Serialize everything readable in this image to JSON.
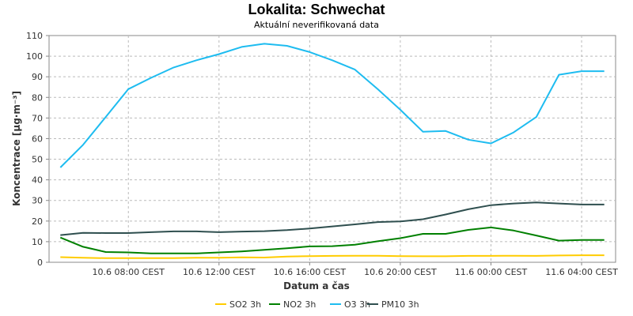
{
  "chart_data": {
    "type": "line",
    "title": "Lokalita: Schwechat",
    "subtitle": "Aktuální neverifikovaná data",
    "xlabel": "Datum a čas",
    "ylabel": "Koncentrace [µg·m⁻³]",
    "ylim": [
      0,
      110
    ],
    "yticks": [
      0,
      10,
      20,
      30,
      40,
      50,
      60,
      70,
      80,
      90,
      100,
      110
    ],
    "x_hours_range": [
      4.5,
      29.5
    ],
    "x_tick_hours": [
      8,
      12,
      16,
      20,
      24,
      28
    ],
    "x_tick_labels": [
      "10.6 08:00 CEST",
      "10.6 12:00 CEST",
      "10.6 16:00 CEST",
      "10.6 20:00 CEST",
      "11.6 00:00 CEST",
      "11.6 04:00 CEST"
    ],
    "x": [
      5,
      6,
      7,
      8,
      9,
      10,
      11,
      12,
      13,
      14,
      15,
      16,
      17,
      18,
      19,
      20,
      21,
      22,
      23,
      24,
      25,
      26,
      27,
      28,
      29
    ],
    "grid": true,
    "legend_position": "bottom",
    "series": [
      {
        "name": "SO2 3h",
        "color": "#ffcc00",
        "values": [
          2.5,
          2.2,
          2.0,
          2.0,
          2.0,
          2.0,
          2.2,
          2.2,
          2.4,
          2.3,
          2.8,
          3.0,
          3.1,
          3.2,
          3.2,
          3.0,
          2.9,
          2.9,
          3.1,
          3.1,
          3.2,
          3.1,
          3.3,
          3.4,
          3.4
        ]
      },
      {
        "name": "NO2 3h",
        "color": "#008000",
        "values": [
          12,
          7.5,
          5.0,
          4.8,
          4.3,
          4.3,
          4.3,
          4.8,
          5.3,
          6.0,
          6.8,
          7.7,
          7.8,
          8.5,
          10.2,
          11.7,
          13.8,
          13.8,
          15.7,
          16.9,
          15.4,
          13.0,
          10.5,
          10.8,
          10.8
        ]
      },
      {
        "name": "O3 3h",
        "color": "#1ebcf0",
        "values": [
          46,
          57,
          70.5,
          84,
          89.5,
          94.5,
          98,
          101,
          104.5,
          106,
          105,
          102,
          98,
          93.5,
          84,
          74,
          63.3,
          63.7,
          59.5,
          57.7,
          63,
          70.5,
          91,
          92.7,
          92.7
        ]
      },
      {
        "name": "PM10 3h",
        "color": "#2f4f4f",
        "values": [
          13.2,
          14.3,
          14.2,
          14.2,
          14.6,
          15.0,
          15.0,
          14.6,
          14.9,
          15.1,
          15.6,
          16.4,
          17.4,
          18.4,
          19.5,
          19.8,
          20.9,
          23.2,
          25.7,
          27.7,
          28.5,
          29.0,
          28.5,
          28.0,
          28.0
        ]
      }
    ]
  }
}
